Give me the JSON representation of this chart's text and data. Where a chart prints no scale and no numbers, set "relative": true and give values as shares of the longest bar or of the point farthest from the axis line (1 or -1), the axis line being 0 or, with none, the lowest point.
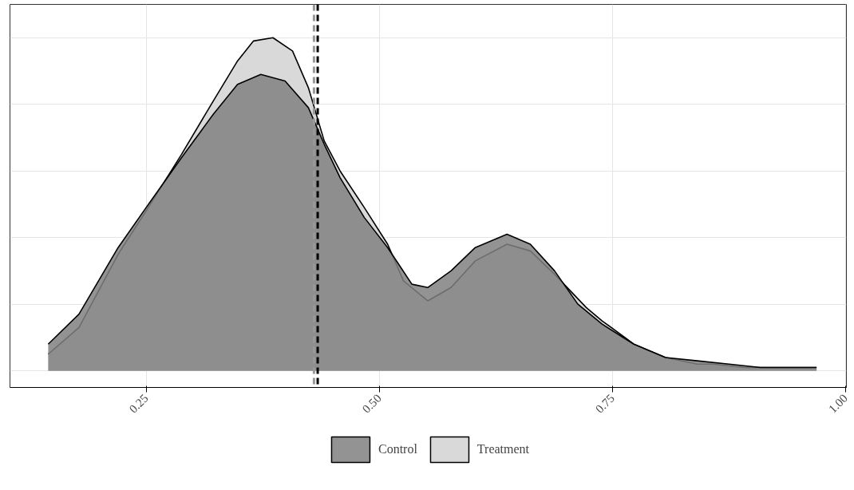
{
  "chart_data": {
    "type": "area",
    "relative": true,
    "xlim": [
      0.104,
      1.001
    ],
    "xticks": [
      {
        "value": 0.25,
        "label": "0.25"
      },
      {
        "value": 0.5,
        "label": "0.50"
      },
      {
        "value": 0.75,
        "label": "0.75"
      },
      {
        "value": 1.0,
        "label": "1.00"
      }
    ],
    "grid": true,
    "legend": "bottom",
    "tick_labels": "x",
    "series": [
      {
        "name": "Treatment",
        "color": "#d9d9d9",
        "x": [
          0.145,
          0.178,
          0.22,
          0.25,
          0.288,
          0.322,
          0.348,
          0.365,
          0.386,
          0.407,
          0.424,
          0.441,
          0.458,
          0.484,
          0.509,
          0.526,
          0.552,
          0.577,
          0.603,
          0.637,
          0.662,
          0.688,
          0.722,
          0.739,
          0.773,
          0.807,
          0.841,
          0.858,
          0.892,
          0.926,
          0.969
        ],
        "values": [
          0.05,
          0.13,
          0.35,
          0.48,
          0.65,
          0.81,
          0.93,
          0.99,
          1,
          0.96,
          0.85,
          0.69,
          0.6,
          0.49,
          0.38,
          0.27,
          0.21,
          0.25,
          0.33,
          0.38,
          0.36,
          0.29,
          0.19,
          0.15,
          0.08,
          0.04,
          0.02,
          0.02,
          0.01,
          0.01,
          0.01
        ]
      },
      {
        "name": "Control",
        "color": "#808080",
        "x": [
          0.145,
          0.178,
          0.22,
          0.25,
          0.288,
          0.322,
          0.348,
          0.373,
          0.399,
          0.424,
          0.441,
          0.458,
          0.484,
          0.509,
          0.535,
          0.552,
          0.577,
          0.603,
          0.637,
          0.662,
          0.688,
          0.713,
          0.739,
          0.773,
          0.807,
          0.841,
          0.875,
          0.909,
          0.943,
          0.969
        ],
        "values": [
          0.08,
          0.17,
          0.37,
          0.49,
          0.64,
          0.77,
          0.86,
          0.89,
          0.87,
          0.79,
          0.68,
          0.58,
          0.46,
          0.37,
          0.26,
          0.25,
          0.3,
          0.37,
          0.41,
          0.38,
          0.3,
          0.2,
          0.14,
          0.08,
          0.04,
          0.03,
          0.02,
          0.01,
          0.01,
          0.01
        ]
      }
    ],
    "ref_lines": [
      {
        "axis": "x",
        "value": 0.43,
        "color": "#999999",
        "line_style": "dashed"
      },
      {
        "axis": "x",
        "value": 0.434,
        "color": "#000000",
        "line_style": "dashed"
      }
    ]
  }
}
